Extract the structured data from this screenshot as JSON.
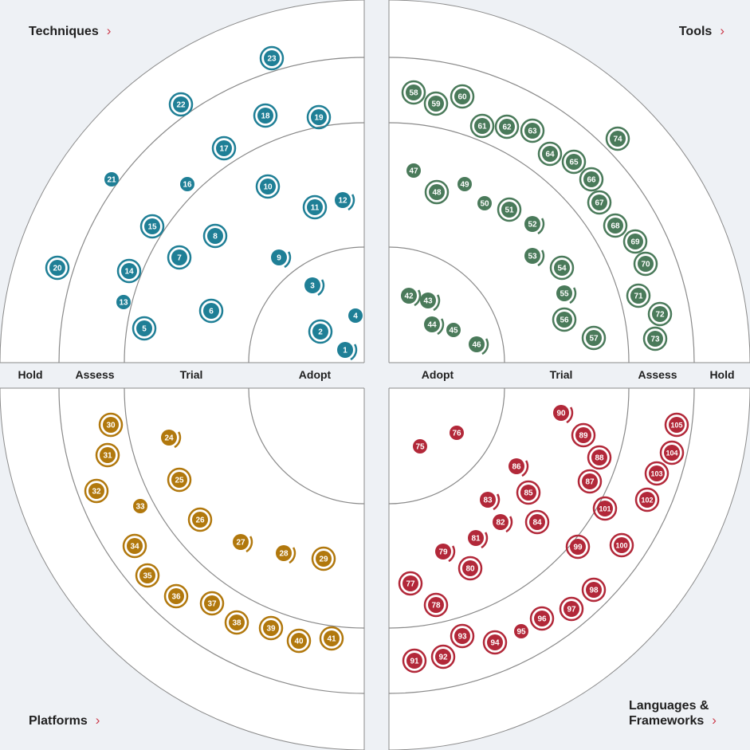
{
  "quadrants": {
    "techniques": {
      "label": "Techniques",
      "color": "#1f7f96"
    },
    "tools": {
      "label": "Tools",
      "color": "#4a7a5a"
    },
    "platforms": {
      "label": "Platforms",
      "color": "#b1780d"
    },
    "languages": {
      "label_line1": "Languages &",
      "label_line2": "Frameworks",
      "color": "#b22839"
    }
  },
  "chevron": "›",
  "rings": {
    "left": [
      "Hold",
      "Assess",
      "Trial",
      "Adopt"
    ],
    "right": [
      "Adopt",
      "Trial",
      "Assess",
      "Hold"
    ]
  },
  "blips": {
    "techniques": [
      {
        "n": "1",
        "style": "arc"
      },
      {
        "n": "2",
        "style": "ring"
      },
      {
        "n": "3",
        "style": "arc"
      },
      {
        "n": "4",
        "style": "plain"
      },
      {
        "n": "5",
        "style": "ring"
      },
      {
        "n": "6",
        "style": "ring"
      },
      {
        "n": "7",
        "style": "ring"
      },
      {
        "n": "8",
        "style": "ring"
      },
      {
        "n": "9",
        "style": "arc"
      },
      {
        "n": "10",
        "style": "ring"
      },
      {
        "n": "11",
        "style": "ring"
      },
      {
        "n": "12",
        "style": "arc"
      },
      {
        "n": "13",
        "style": "plain"
      },
      {
        "n": "14",
        "style": "ring"
      },
      {
        "n": "15",
        "style": "ring"
      },
      {
        "n": "16",
        "style": "plain"
      },
      {
        "n": "17",
        "style": "ring"
      },
      {
        "n": "18",
        "style": "ring"
      },
      {
        "n": "19",
        "style": "ring"
      },
      {
        "n": "20",
        "style": "ring"
      },
      {
        "n": "21",
        "style": "plain"
      },
      {
        "n": "22",
        "style": "ring"
      },
      {
        "n": "23",
        "style": "ring"
      }
    ],
    "tools": [
      {
        "n": "42",
        "style": "arc"
      },
      {
        "n": "43",
        "style": "arc"
      },
      {
        "n": "44",
        "style": "arc"
      },
      {
        "n": "45",
        "style": "plain"
      },
      {
        "n": "46",
        "style": "arc"
      },
      {
        "n": "47",
        "style": "plain"
      },
      {
        "n": "48",
        "style": "ring"
      },
      {
        "n": "49",
        "style": "plain"
      },
      {
        "n": "50",
        "style": "plain"
      },
      {
        "n": "51",
        "style": "ring"
      },
      {
        "n": "52",
        "style": "arc"
      },
      {
        "n": "53",
        "style": "arc"
      },
      {
        "n": "54",
        "style": "ring"
      },
      {
        "n": "55",
        "style": "arc"
      },
      {
        "n": "56",
        "style": "ring"
      },
      {
        "n": "57",
        "style": "ring"
      },
      {
        "n": "58",
        "style": "ring"
      },
      {
        "n": "59",
        "style": "ring"
      },
      {
        "n": "60",
        "style": "ring"
      },
      {
        "n": "61",
        "style": "ring"
      },
      {
        "n": "62",
        "style": "ring"
      },
      {
        "n": "63",
        "style": "ring"
      },
      {
        "n": "64",
        "style": "ring"
      },
      {
        "n": "65",
        "style": "ring"
      },
      {
        "n": "66",
        "style": "ring"
      },
      {
        "n": "67",
        "style": "ring"
      },
      {
        "n": "68",
        "style": "ring"
      },
      {
        "n": "69",
        "style": "ring"
      },
      {
        "n": "70",
        "style": "ring"
      },
      {
        "n": "71",
        "style": "ring"
      },
      {
        "n": "72",
        "style": "ring"
      },
      {
        "n": "73",
        "style": "ring"
      },
      {
        "n": "74",
        "style": "ring"
      }
    ],
    "platforms": [
      {
        "n": "24",
        "style": "arc"
      },
      {
        "n": "25",
        "style": "ring"
      },
      {
        "n": "26",
        "style": "ring"
      },
      {
        "n": "27",
        "style": "arc"
      },
      {
        "n": "28",
        "style": "arc"
      },
      {
        "n": "29",
        "style": "ring"
      },
      {
        "n": "30",
        "style": "ring"
      },
      {
        "n": "31",
        "style": "ring"
      },
      {
        "n": "32",
        "style": "ring"
      },
      {
        "n": "33",
        "style": "plain"
      },
      {
        "n": "34",
        "style": "ring"
      },
      {
        "n": "35",
        "style": "ring"
      },
      {
        "n": "36",
        "style": "ring"
      },
      {
        "n": "37",
        "style": "ring"
      },
      {
        "n": "38",
        "style": "ring"
      },
      {
        "n": "39",
        "style": "ring"
      },
      {
        "n": "40",
        "style": "ring"
      },
      {
        "n": "41",
        "style": "ring"
      }
    ],
    "languages": [
      {
        "n": "75",
        "style": "plain"
      },
      {
        "n": "76",
        "style": "plain"
      },
      {
        "n": "77",
        "style": "ring"
      },
      {
        "n": "78",
        "style": "ring"
      },
      {
        "n": "79",
        "style": "arc"
      },
      {
        "n": "80",
        "style": "ring"
      },
      {
        "n": "81",
        "style": "arc"
      },
      {
        "n": "82",
        "style": "arc"
      },
      {
        "n": "83",
        "style": "arc"
      },
      {
        "n": "84",
        "style": "ring"
      },
      {
        "n": "85",
        "style": "ring"
      },
      {
        "n": "86",
        "style": "arc"
      },
      {
        "n": "87",
        "style": "ring"
      },
      {
        "n": "88",
        "style": "ring"
      },
      {
        "n": "89",
        "style": "ring"
      },
      {
        "n": "90",
        "style": "arc"
      },
      {
        "n": "91",
        "style": "ring"
      },
      {
        "n": "92",
        "style": "ring"
      },
      {
        "n": "93",
        "style": "ring"
      },
      {
        "n": "94",
        "style": "ring"
      },
      {
        "n": "95",
        "style": "plain"
      },
      {
        "n": "96",
        "style": "ring"
      },
      {
        "n": "97",
        "style": "ring"
      },
      {
        "n": "98",
        "style": "ring"
      },
      {
        "n": "99",
        "style": "ring"
      },
      {
        "n": "100",
        "style": "ring"
      },
      {
        "n": "101",
        "style": "ring"
      },
      {
        "n": "102",
        "style": "ring"
      },
      {
        "n": "103",
        "style": "ring"
      },
      {
        "n": "104",
        "style": "ring"
      },
      {
        "n": "105",
        "style": "ring"
      }
    ]
  }
}
